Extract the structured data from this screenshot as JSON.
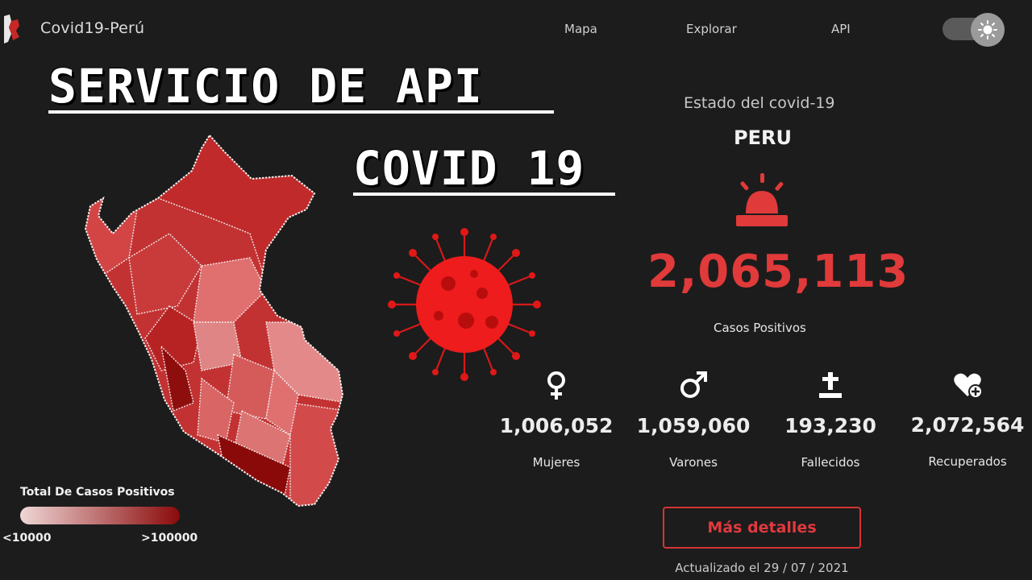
{
  "nav": {
    "brand": "Covid19-Perú",
    "links": [
      "Mapa",
      "Explorar",
      "API"
    ],
    "theme_toggle_icon": "sun-icon"
  },
  "overlay": {
    "title_line1": "SERVICIO DE API",
    "title_line2": "COVID 19"
  },
  "summary": {
    "caption": "Estado del covid-19",
    "country": "PERU",
    "alert_icon": "siren-icon",
    "positive_cases": "2,065,113",
    "positive_label": "Casos Positivos"
  },
  "metrics": [
    {
      "icon": "female-icon",
      "value": "1,006,052",
      "label": "Mujeres"
    },
    {
      "icon": "male-icon",
      "value": "1,059,060",
      "label": "Varones"
    },
    {
      "icon": "grave-cross-icon",
      "value": "193,230",
      "label": "Fallecidos"
    },
    {
      "icon": "heart-plus-icon",
      "value": "2,072,564",
      "label": "Recuperados"
    }
  ],
  "actions": {
    "details_button": "Más detalles"
  },
  "updated": "Actualizado el 29 / 07 / 2021",
  "legend": {
    "title": "Total De Casos Positivos",
    "min_label": "<10000",
    "max_label": ">100000",
    "gradient_start": "#f0d6d6",
    "gradient_end": "#8a0a0a"
  },
  "colors": {
    "accent": "#e03a3a",
    "background": "#1c1c1c"
  }
}
